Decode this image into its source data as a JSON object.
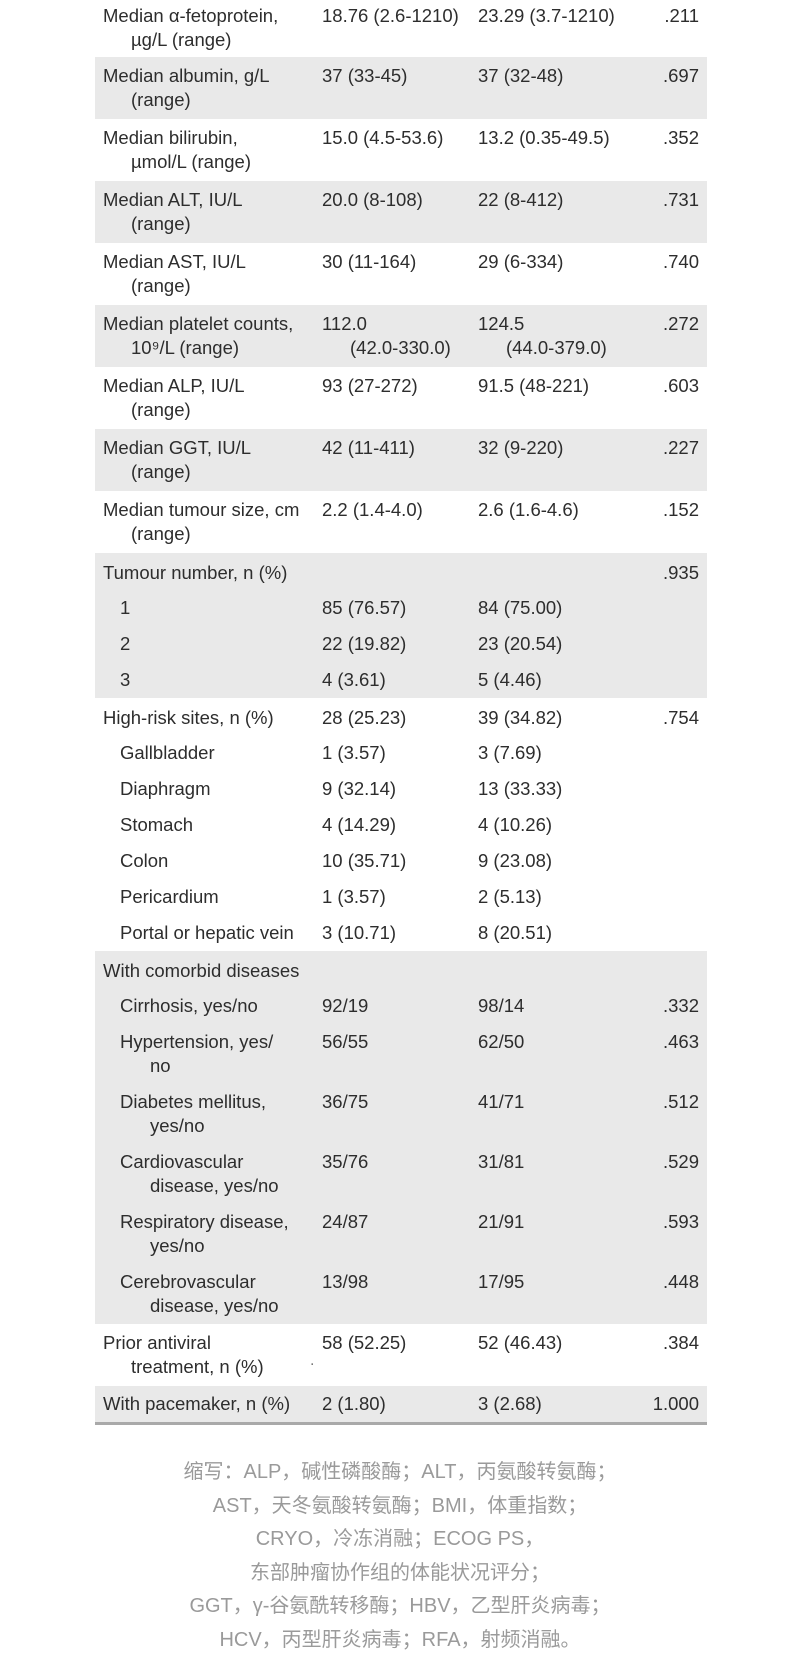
{
  "colors": {
    "row_shade": "#e9e9e9",
    "table_bottom_border": "#a9a9a9",
    "table_text": "#2d2d2d",
    "footnote_text": "#9a9a9a"
  },
  "rows": [
    {
      "l1": "Median α-fetoprotein,",
      "l2": "µg/L (range)",
      "v1": "18.76 (2.6-1210)",
      "v2": "23.29 (3.7-1210)",
      "p": ".211"
    },
    {
      "l1": "Median albumin, g/L",
      "l2": "(range)",
      "v1": "37 (33-45)",
      "v2": "37 (32-48)",
      "p": ".697"
    },
    {
      "l1": "Median bilirubin,",
      "l2": "µmol/L (range)",
      "v1": "15.0 (4.5-53.6)",
      "v2": "13.2 (0.35-49.5)",
      "p": ".352"
    },
    {
      "l1": "Median ALT, IU/L",
      "l2": "(range)",
      "v1": "20.0 (8-108)",
      "v2": "22 (8-412)",
      "p": ".731"
    },
    {
      "l1": "Median AST, IU/L",
      "l2": "(range)",
      "v1": "30 (11-164)",
      "v2": "29 (6-334)",
      "p": ".740"
    },
    {
      "l1": "Median platelet counts,",
      "l2": "10⁹/L (range)",
      "v1": "112.0",
      "v1b": "(42.0-330.0)",
      "v2": "124.5",
      "v2b": "(44.0-379.0)",
      "p": ".272"
    },
    {
      "l1": "Median ALP, IU/L",
      "l2": "(range)",
      "v1": "93 (27-272)",
      "v2": "91.5 (48-221)",
      "p": ".603"
    },
    {
      "l1": "Median GGT, IU/L",
      "l2": "(range)",
      "v1": "42 (11-411)",
      "v2": "32 (9-220)",
      "p": ".227"
    },
    {
      "l1": "Median tumour size, cm",
      "l2": "(range)",
      "v1": "2.2 (1.4-4.0)",
      "v2": "2.6 (1.6-4.6)",
      "p": ".152"
    },
    {
      "l1": "Tumour number, n (%)",
      "p": ".935"
    },
    {
      "l1": "1",
      "v1": "85 (76.57)",
      "v2": "84 (75.00)"
    },
    {
      "l1": "2",
      "v1": "22 (19.82)",
      "v2": "23 (20.54)"
    },
    {
      "l1": "3",
      "v1": "4 (3.61)",
      "v2": "5 (4.46)"
    },
    {
      "l1": "High-risk sites, n (%)",
      "v1": "28 (25.23)",
      "v2": "39 (34.82)",
      "p": ".754"
    },
    {
      "l1": "Gallbladder",
      "v1": "1 (3.57)",
      "v2": "3 (7.69)"
    },
    {
      "l1": "Diaphragm",
      "v1": "9 (32.14)",
      "v2": "13 (33.33)"
    },
    {
      "l1": "Stomach",
      "v1": "4 (14.29)",
      "v2": "4 (10.26)"
    },
    {
      "l1": "Colon",
      "v1": "10 (35.71)",
      "v2": "9 (23.08)"
    },
    {
      "l1": "Pericardium",
      "v1": "1 (3.57)",
      "v2": "2 (5.13)"
    },
    {
      "l1": "Portal or hepatic vein",
      "v1": "3 (10.71)",
      "v2": "8 (20.51)"
    },
    {
      "l1": "With comorbid diseases"
    },
    {
      "l1": "Cirrhosis, yes/no",
      "v1": "92/19",
      "v2": "98/14",
      "p": ".332"
    },
    {
      "l1": "Hypertension, yes/",
      "l2": "no",
      "v1": "56/55",
      "v2": "62/50",
      "p": ".463"
    },
    {
      "l1": "Diabetes mellitus,",
      "l2": "yes/no",
      "v1": "36/75",
      "v2": "41/71",
      "p": ".512"
    },
    {
      "l1": "Cardiovascular",
      "l2": "disease, yes/no",
      "v1": "35/76",
      "v2": "31/81",
      "p": ".529"
    },
    {
      "l1": "Respiratory disease,",
      "l2": "yes/no",
      "v1": "24/87",
      "v2": "21/91",
      "p": ".593"
    },
    {
      "l1": "Cerebrovascular",
      "l2": "disease, yes/no",
      "v1": "13/98",
      "v2": "17/95",
      "p": ".448"
    },
    {
      "l1": "Prior antiviral",
      "l2": "treatment, n (%)",
      "v1": "58 (52.25)",
      "v2": "52 (46.43)",
      "p": ".384"
    },
    {
      "l1": "With pacemaker, n (%)",
      "v1": "2 (1.80)",
      "v2": "3 (2.68)",
      "p": "1.000"
    }
  ],
  "artifact": {
    "dot": "."
  },
  "footnote": {
    "lines": [
      "缩写：ALP，碱性磷酸酶；ALT，丙氨酸转氨酶；",
      "AST，天冬氨酸转氨酶；BMI，体重指数；",
      "CRYO，冷冻消融；ECOG PS，",
      "东部肿瘤协作组的体能状况评分；",
      "GGT，γ-谷氨酰转移酶；HBV，乙型肝炎病毒；",
      "HCV，丙型肝炎病毒；RFA，射频消融。"
    ]
  }
}
